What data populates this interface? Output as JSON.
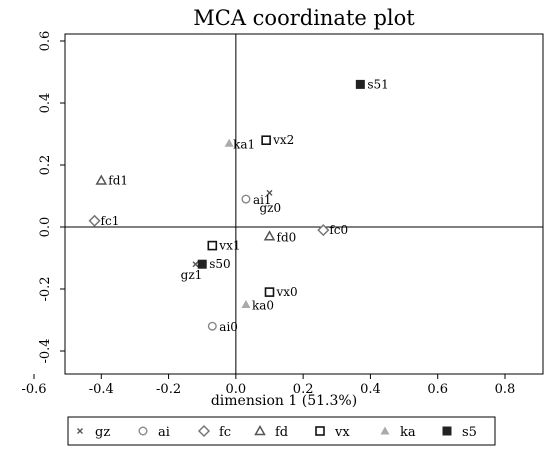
{
  "chart_data": {
    "type": "scatter",
    "title": "MCA coordinate plot",
    "xlabel": "dimension 1 (51.3%)",
    "ylabel": "",
    "xlim": [
      -0.65,
      1.0
    ],
    "ylim": [
      -0.43,
      0.62
    ],
    "x_ticks": [
      -0.6,
      -0.4,
      -0.2,
      0.0,
      0.2,
      0.4,
      0.6,
      0.8
    ],
    "x_tick_labels": [
      "-0.6",
      "-0.4",
      "-0.2",
      "0.0",
      "0.2",
      "0.4",
      "0.6",
      "0.8"
    ],
    "y_ticks": [
      -0.4,
      -0.2,
      0.0,
      0.2,
      0.4,
      0.6
    ],
    "y_tick_labels": [
      "-0.4",
      "-0.2",
      "0.0",
      "0.2",
      "0.4",
      "0.6"
    ],
    "grid": false,
    "legend_position": "bottom",
    "series": [
      {
        "name": "gz",
        "marker": "x",
        "color": "#555555",
        "points": [
          {
            "label": "gz0",
            "x": 0.1,
            "y": 0.11
          },
          {
            "label": "gz1",
            "x": -0.12,
            "y": -0.12
          }
        ]
      },
      {
        "name": "ai",
        "marker": "circle",
        "color": "#888888",
        "points": [
          {
            "label": "ai1",
            "x": 0.03,
            "y": 0.09
          },
          {
            "label": "ai0",
            "x": -0.07,
            "y": -0.32
          }
        ]
      },
      {
        "name": "fc",
        "marker": "diamond",
        "color": "#777777",
        "points": [
          {
            "label": "fc1",
            "x": -0.42,
            "y": 0.02
          },
          {
            "label": "fc0",
            "x": 0.26,
            "y": -0.01
          }
        ]
      },
      {
        "name": "fd",
        "marker": "triangle-open",
        "color": "#555555",
        "points": [
          {
            "label": "fd1",
            "x": -0.4,
            "y": 0.15
          },
          {
            "label": "fd0",
            "x": 0.1,
            "y": -0.03
          }
        ]
      },
      {
        "name": "vx",
        "marker": "square-open",
        "color": "#111111",
        "points": [
          {
            "label": "vx2",
            "x": 0.09,
            "y": 0.28
          },
          {
            "label": "vx1",
            "x": -0.07,
            "y": -0.06
          },
          {
            "label": "vx0",
            "x": 0.1,
            "y": -0.21
          }
        ]
      },
      {
        "name": "ka",
        "marker": "triangle-filled",
        "color": "#aaaaaa",
        "points": [
          {
            "label": "ka1",
            "x": -0.02,
            "y": 0.27
          },
          {
            "label": "ka0",
            "x": 0.03,
            "y": -0.25
          }
        ]
      },
      {
        "name": "s5",
        "marker": "square-filled",
        "color": "#222222",
        "points": [
          {
            "label": "s51",
            "x": 0.37,
            "y": 0.46
          },
          {
            "label": "s50",
            "x": -0.1,
            "y": -0.12
          }
        ]
      }
    ]
  }
}
